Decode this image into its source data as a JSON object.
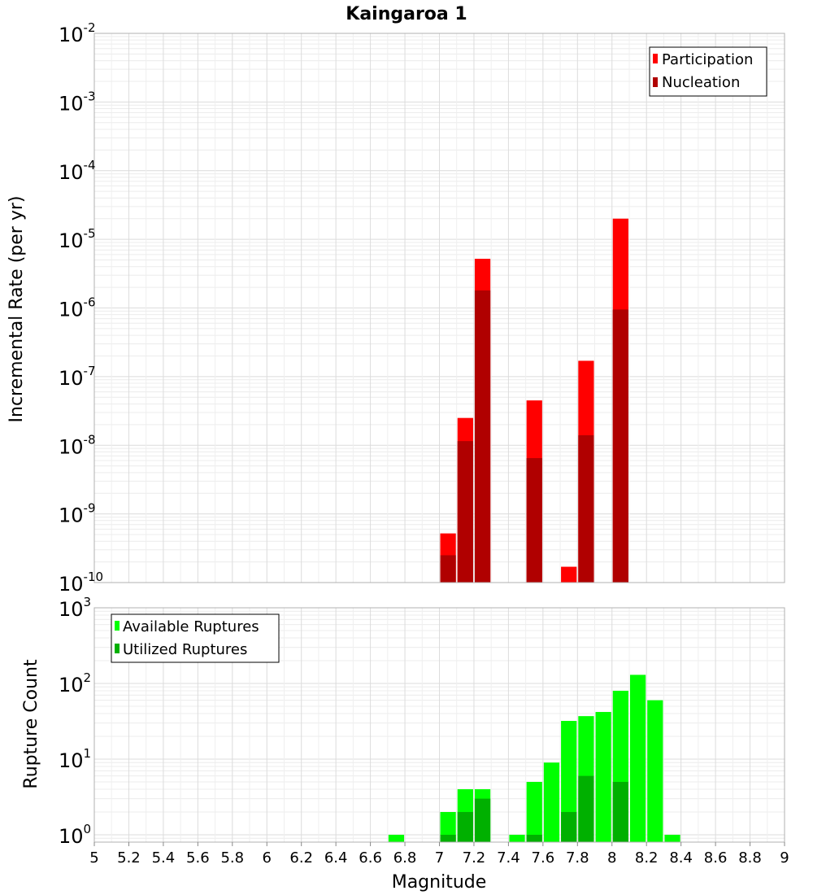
{
  "title": "Kaingaroa 1",
  "xlabel": "Magnitude",
  "colors": {
    "participation": "#ff0000",
    "nucleation": "#b00000",
    "available": "#00ff00",
    "utilized": "#00b000",
    "grid": "#e4e4e4",
    "frame": "#b0b0b0"
  },
  "chart_data": [
    {
      "type": "bar",
      "subplot": "top",
      "ylabel": "Incremental Rate (per yr)",
      "y_scale": "log",
      "ylim": [
        1e-10,
        0.01
      ],
      "xlim": [
        5,
        9
      ],
      "y_tick_exponents": [
        "-10",
        "-9",
        "-8",
        "-7",
        "-6",
        "-5",
        "-4",
        "-3",
        "-2"
      ],
      "legend_position": "top-right",
      "bin_width": 0.1,
      "series": [
        {
          "name": "Participation",
          "x": [
            7.05,
            7.15,
            7.25,
            7.55,
            7.75,
            7.85,
            8.05
          ],
          "values": [
            5.2e-10,
            2.5e-08,
            5.2e-06,
            4.5e-08,
            1.7e-10,
            1.7e-07,
            2e-05
          ]
        },
        {
          "name": "Nucleation",
          "x": [
            7.05,
            7.15,
            7.25,
            7.55,
            7.75,
            7.85,
            8.05
          ],
          "values": [
            2.5e-10,
            1.15e-08,
            1.8e-06,
            6.5e-09,
            0,
            1.4e-08,
            9.5e-07
          ]
        }
      ]
    },
    {
      "type": "bar",
      "subplot": "bottom",
      "ylabel": "Rupture Count",
      "y_scale": "log",
      "ylim": [
        0.8,
        1000
      ],
      "xlim": [
        5,
        9
      ],
      "y_tick_exponents": [
        "0",
        "1",
        "2",
        "3"
      ],
      "legend_position": "top-left",
      "bin_width": 0.1,
      "series": [
        {
          "name": "Available Ruptures",
          "x": [
            6.75,
            7.05,
            7.15,
            7.25,
            7.45,
            7.55,
            7.65,
            7.75,
            7.85,
            7.95,
            8.05,
            8.15,
            8.25,
            8.35
          ],
          "values": [
            1,
            2,
            4,
            4,
            1,
            5,
            9,
            32,
            37,
            42,
            80,
            130,
            60,
            1
          ]
        },
        {
          "name": "Utilized Ruptures",
          "x": [
            7.05,
            7.15,
            7.25,
            7.55,
            7.75,
            7.85,
            8.05
          ],
          "values": [
            1,
            2,
            3,
            1,
            2,
            6,
            5
          ]
        }
      ]
    }
  ],
  "x_ticks": [
    "5",
    "5.2",
    "5.4",
    "5.6",
    "5.8",
    "6",
    "6.2",
    "6.4",
    "6.6",
    "6.8",
    "7",
    "7.2",
    "7.4",
    "7.6",
    "7.8",
    "8",
    "8.2",
    "8.4",
    "8.6",
    "8.8",
    "9"
  ]
}
